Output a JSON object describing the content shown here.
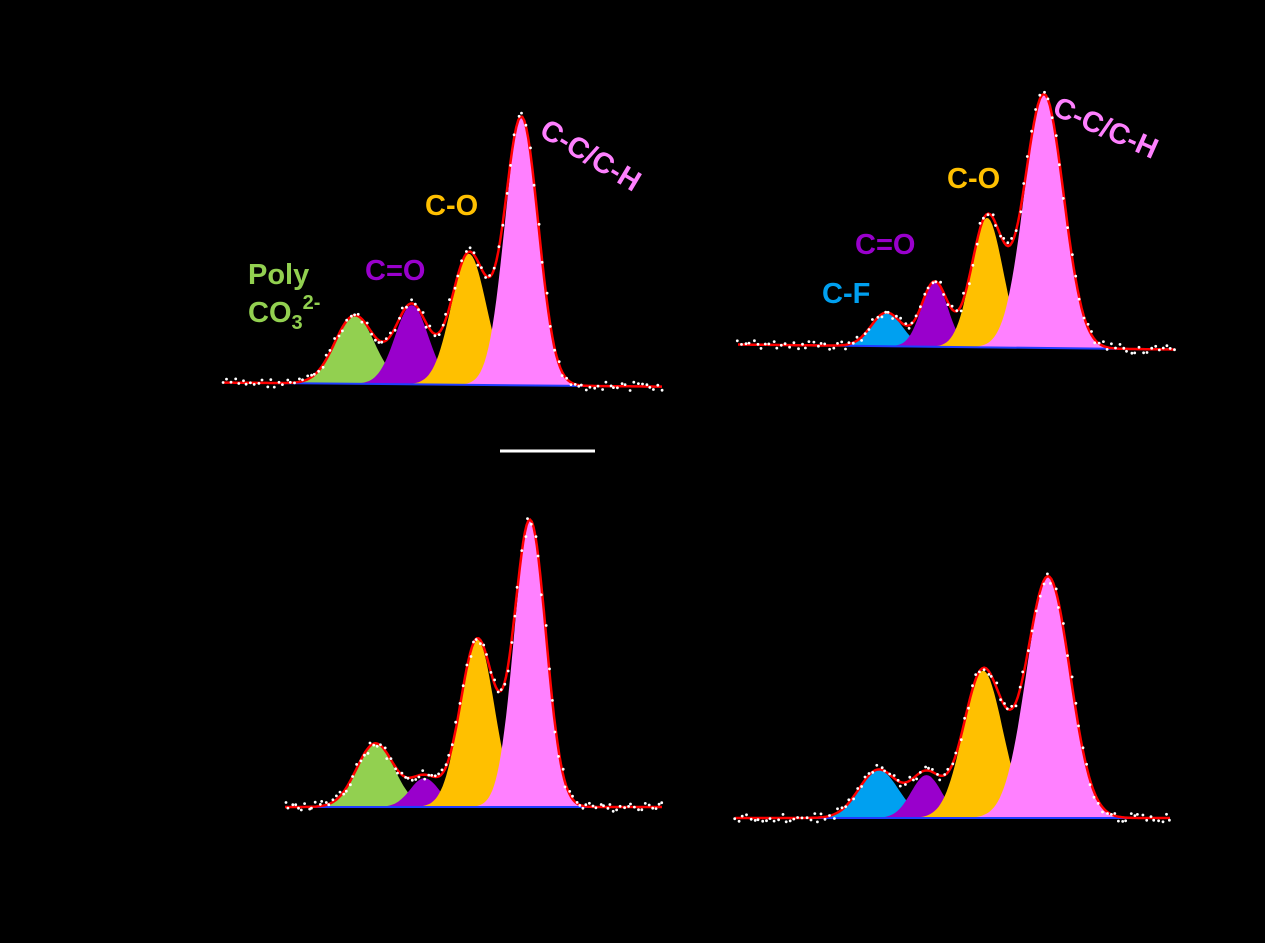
{
  "colors": {
    "background": "#000000",
    "envelope": "#ff0000",
    "baseline": "#1f3cff",
    "data_points": "#ffffff",
    "Poly CO3 2-": "#92d050",
    "C=O": "#9900cc",
    "C-O": "#ffc000",
    "C-C/C-H": "#ff80ff",
    "C-F": "#00a0f0"
  },
  "scalebar": {
    "text": ""
  },
  "chart_data": [
    {
      "type": "area",
      "x_range": [
        0,
        1
      ],
      "y_range": [
        0,
        1
      ],
      "baseline": {
        "start": 0.02,
        "end": 0.005
      },
      "labels": [
        {
          "name": "Poly",
          "sub_text": "CO",
          "sub_num": "3",
          "sup": "2-",
          "series": "Poly CO3 2-"
        },
        {
          "name": "C=O",
          "series": "C=O"
        },
        {
          "name": "C-O",
          "series": "C-O"
        },
        {
          "name": "C-C/C-H",
          "series": "C-C/C-H"
        }
      ],
      "series": [
        {
          "component": "Poly CO3 2-",
          "center": 0.3,
          "height": 0.25,
          "width": 0.045
        },
        {
          "component": "C=O",
          "center": 0.43,
          "height": 0.29,
          "width": 0.038
        },
        {
          "component": "C-O",
          "center": 0.56,
          "height": 0.48,
          "width": 0.04
        },
        {
          "component": "C-C/C-H",
          "center": 0.68,
          "height": 0.98,
          "width": 0.038
        }
      ]
    },
    {
      "type": "area",
      "x_range": [
        0,
        1
      ],
      "y_range": [
        0,
        1
      ],
      "baseline": {
        "start": 0.0,
        "end": 0.0
      },
      "labels": [
        {
          "name": "C-F",
          "series": "C-F"
        },
        {
          "name": "C=O",
          "series": "C=O"
        },
        {
          "name": "C-O",
          "series": "C-O"
        },
        {
          "name": "C-C/C-H",
          "series": "C-C/C-H"
        }
      ],
      "series": [
        {
          "component": "C-F",
          "center": 0.34,
          "height": 0.13,
          "width": 0.035
        },
        {
          "component": "C=O",
          "center": 0.45,
          "height": 0.25,
          "width": 0.03
        },
        {
          "component": "C-O",
          "center": 0.57,
          "height": 0.5,
          "width": 0.036
        },
        {
          "component": "C-C/C-H",
          "center": 0.7,
          "height": 0.98,
          "width": 0.045
        }
      ]
    },
    {
      "type": "area",
      "x_range": [
        0,
        1
      ],
      "y_range": [
        0,
        1
      ],
      "baseline": {
        "start": 0.0,
        "end": 0.0
      },
      "labels": [],
      "series": [
        {
          "component": "Poly CO3 2-",
          "center": 0.24,
          "height": 0.22,
          "width": 0.05
        },
        {
          "component": "C=O",
          "center": 0.37,
          "height": 0.1,
          "width": 0.038
        },
        {
          "component": "C-O",
          "center": 0.51,
          "height": 0.58,
          "width": 0.045
        },
        {
          "component": "C-C/C-H",
          "center": 0.65,
          "height": 0.99,
          "width": 0.042
        }
      ]
    },
    {
      "type": "area",
      "x_range": [
        0,
        1
      ],
      "y_range": [
        0,
        1
      ],
      "baseline": {
        "start": 0.0,
        "end": 0.0
      },
      "labels": [],
      "series": [
        {
          "component": "C-F",
          "center": 0.33,
          "height": 0.18,
          "width": 0.045
        },
        {
          "component": "C=O",
          "center": 0.44,
          "height": 0.16,
          "width": 0.035
        },
        {
          "component": "C-O",
          "center": 0.57,
          "height": 0.55,
          "width": 0.045
        },
        {
          "component": "C-C/C-H",
          "center": 0.72,
          "height": 0.9,
          "width": 0.05
        }
      ]
    }
  ]
}
